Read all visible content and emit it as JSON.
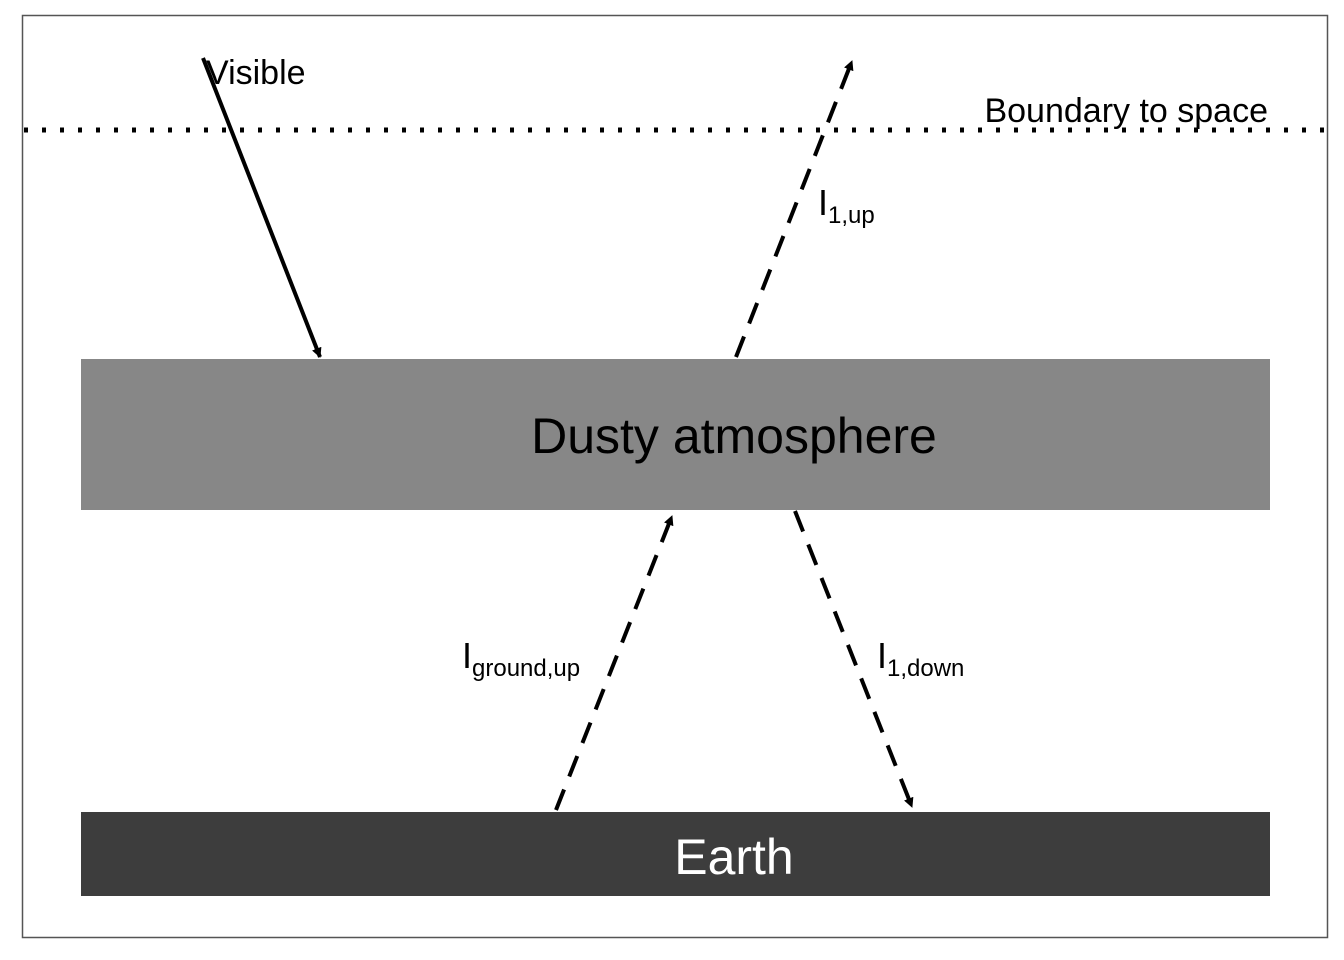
{
  "labels": {
    "visible": "Visible",
    "boundary": "Boundary to space",
    "atmosphere": "Dusty atmosphere",
    "earth": "Earth",
    "i1_up": {
      "main": "I",
      "sub": "1,up"
    },
    "i_ground_up": {
      "main": "I",
      "sub": "ground,up"
    },
    "i1_down": {
      "main": "I",
      "sub": "1,down"
    }
  },
  "colors": {
    "atmosphere": "#878787",
    "earth": "#3d3d3d",
    "earth_text": "#ffffff",
    "line": "#000000",
    "frame": "#555555"
  }
}
